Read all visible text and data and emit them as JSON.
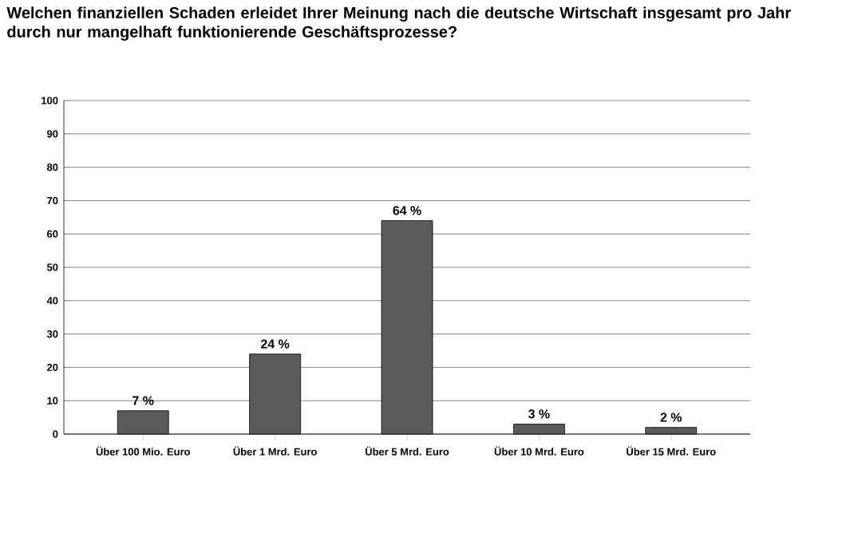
{
  "chart_data": {
    "type": "bar",
    "title": "Welchen finanziellen Schaden erleidet Ihrer Meinung nach die deutsche Wirtschaft insgesamt pro Jahr durch nur mangelhaft funktionierende Geschäftsprozesse?",
    "categories": [
      "Über 100 Mio. Euro",
      "Über 1 Mrd. Euro",
      "Über 5 Mrd. Euro",
      "Über 10 Mrd. Euro",
      "Über 15 Mrd. Euro"
    ],
    "values": [
      7,
      24,
      64,
      3,
      2
    ],
    "value_labels": [
      "7 %",
      "24 %",
      "64 %",
      "3 %",
      "2 %"
    ],
    "color": "#5a5a5a",
    "ylim": [
      0,
      100
    ],
    "yticks": [
      0,
      10,
      20,
      30,
      40,
      50,
      60,
      70,
      80,
      90,
      100
    ],
    "grid": "y"
  }
}
